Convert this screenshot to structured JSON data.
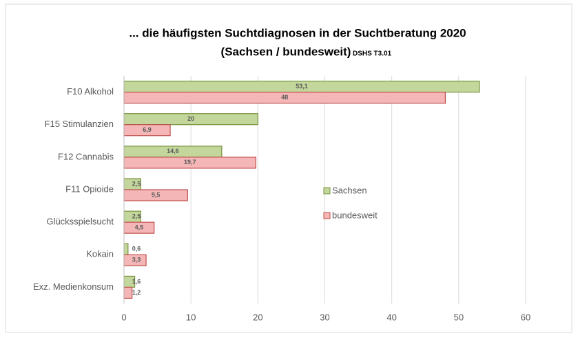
{
  "chart_data": {
    "type": "bar",
    "orientation": "horizontal",
    "title": "... die häufigsten Suchtdiagnosen in der Suchtberatung 2020",
    "subtitle": "(Sachsen / bundesweit)",
    "annotation": "DSHS T3.01",
    "categories": [
      "F10 Alkohol",
      "F15 Stimulanzien",
      "F12 Cannabis",
      "F11 Opioide",
      "Glücksspielsucht",
      "Kokain",
      "Exz. Medienkonsum"
    ],
    "series": [
      {
        "name": "Sachsen",
        "color": "#c3d69b",
        "stroke": "#77933c",
        "values": [
          53.1,
          20,
          14.6,
          2.5,
          2.5,
          0.6,
          1.6
        ],
        "value_labels": [
          "53,1",
          "20",
          "14,6",
          "2,5",
          "2,5",
          "0,6",
          "1,6"
        ]
      },
      {
        "name": "bundesweit",
        "color": "#f4b6b6",
        "stroke": "#c0504d",
        "values": [
          48,
          6.9,
          19.7,
          9.5,
          4.5,
          3.3,
          1.2
        ],
        "value_labels": [
          "48",
          "6,9",
          "19,7",
          "9,5",
          "4,5",
          "3,3",
          "1,2"
        ]
      }
    ],
    "xlim": [
      0,
      60
    ],
    "xticks": [
      0,
      10,
      20,
      30,
      40,
      50,
      60
    ],
    "grid": true,
    "legend": "right"
  }
}
